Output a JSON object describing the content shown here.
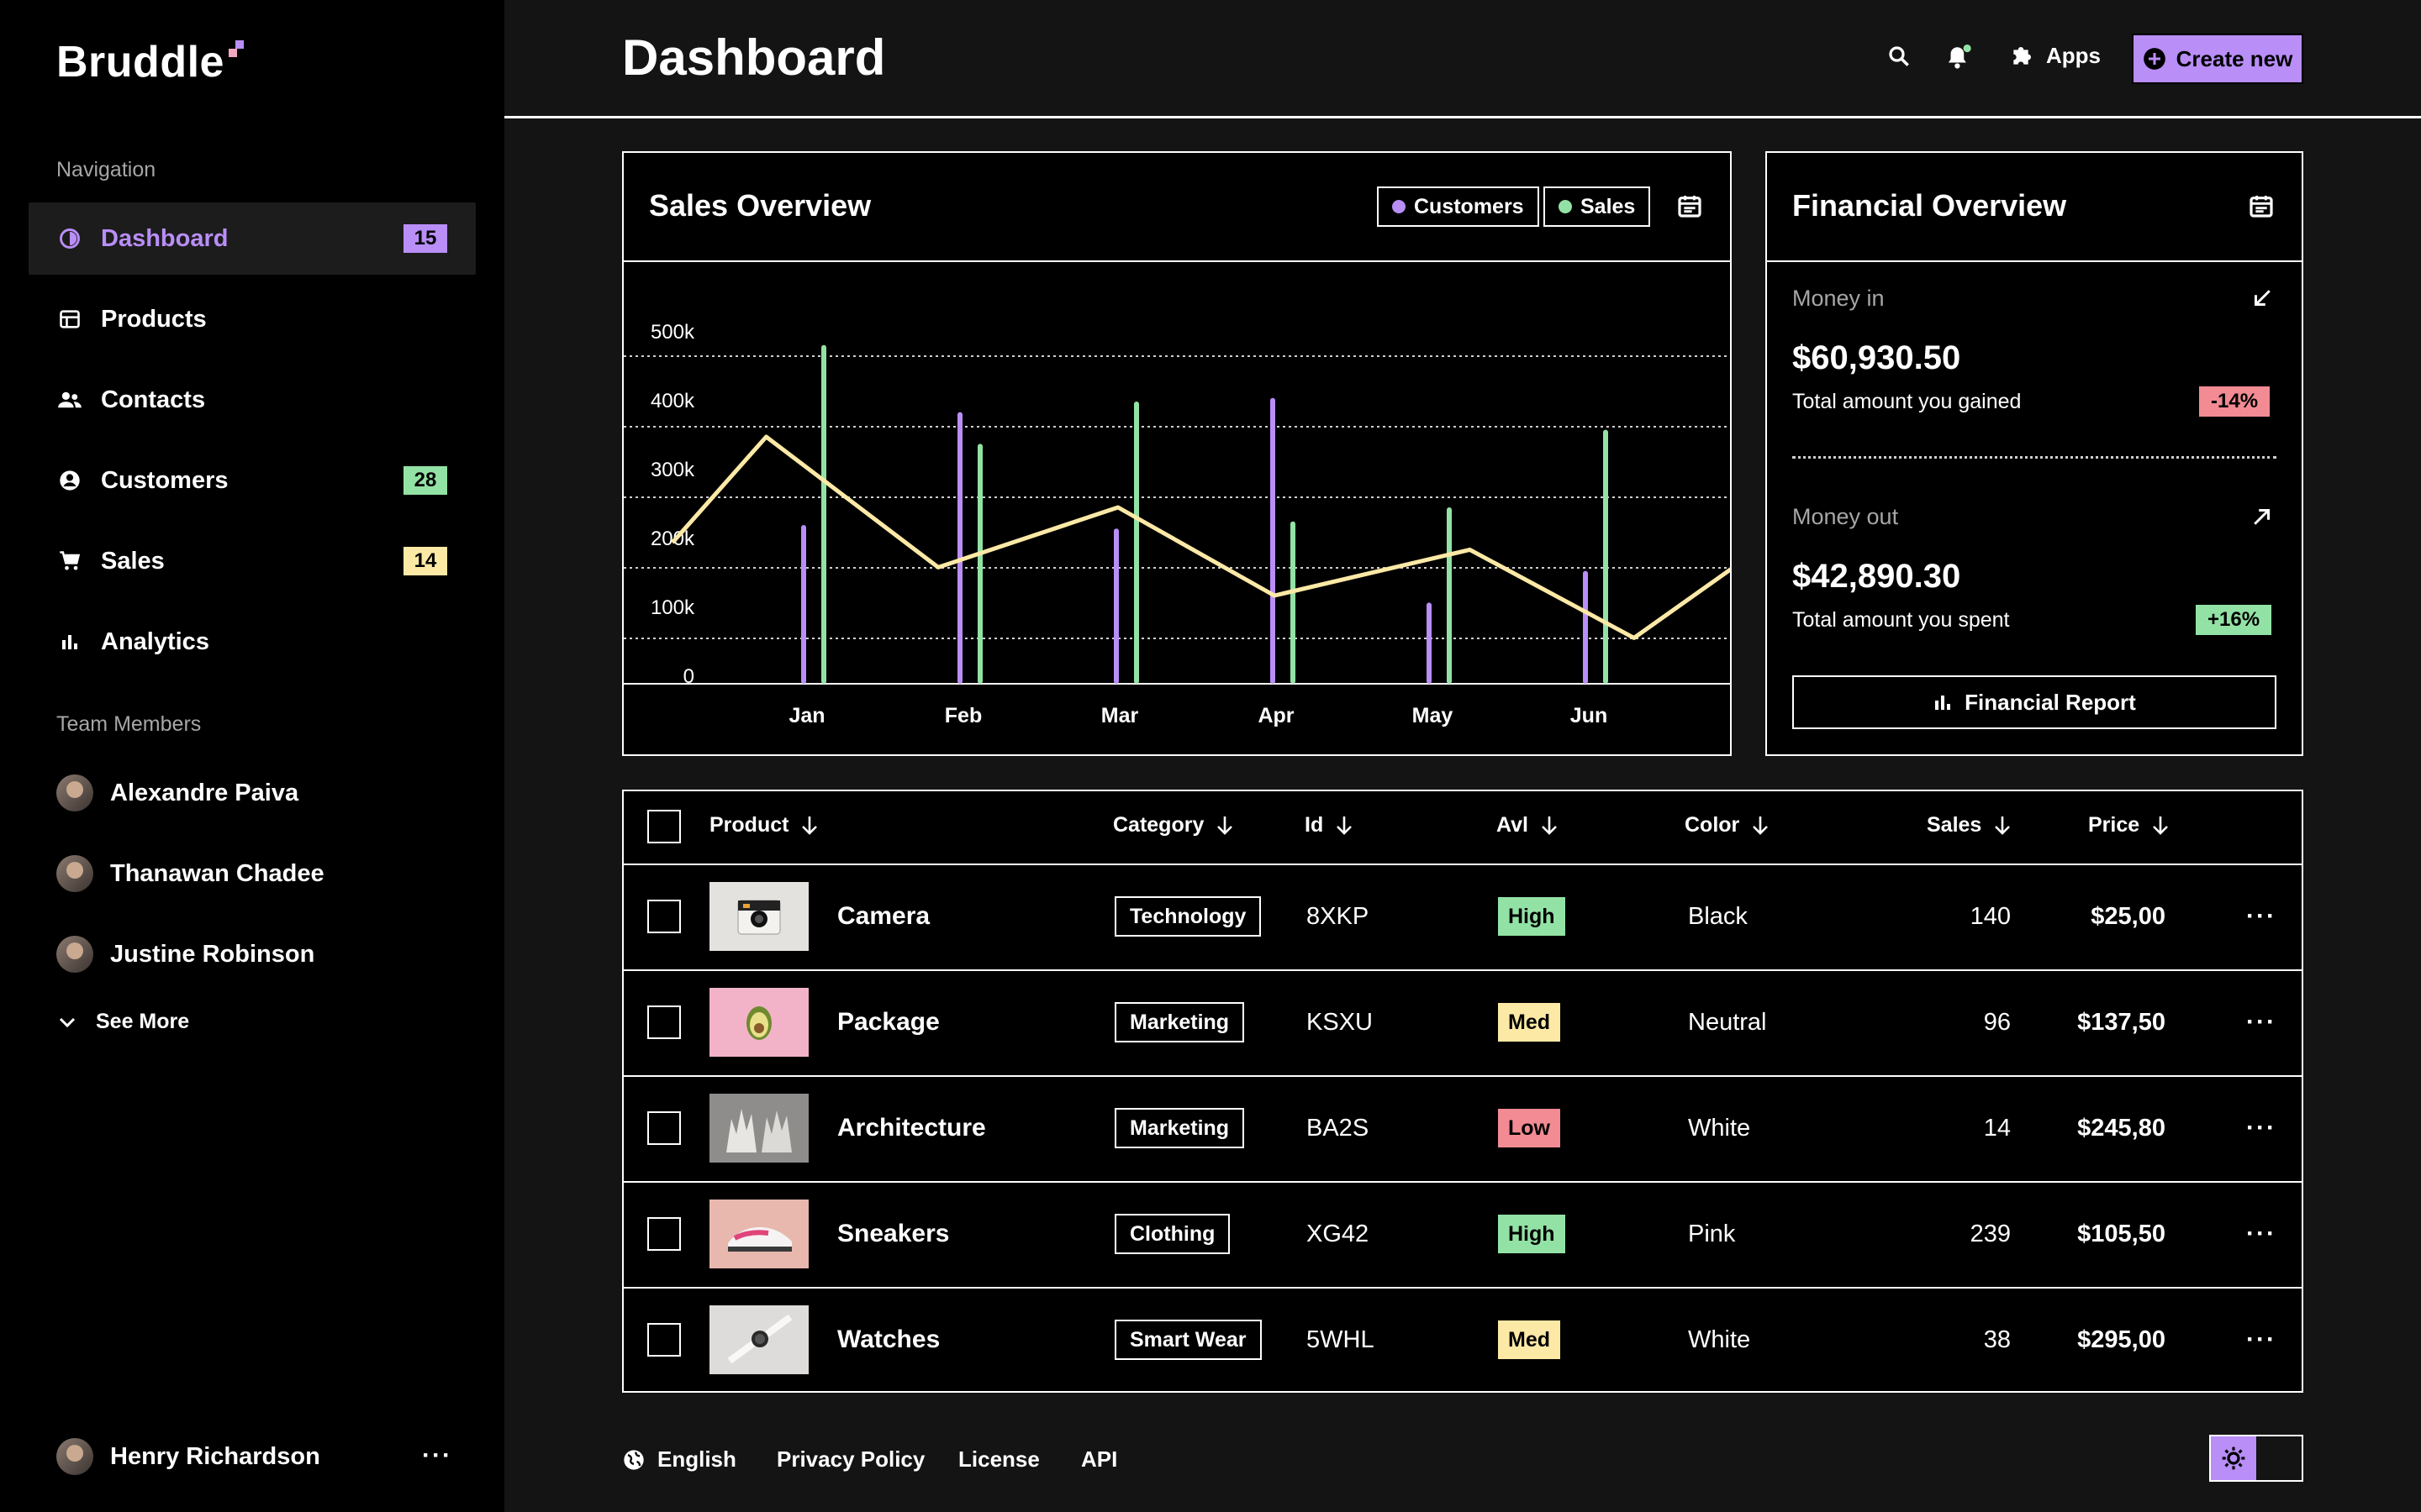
{
  "brand": "Bruddle",
  "colors": {
    "accent": "#b98ef7",
    "green": "#93e2a5",
    "yellow": "#fde9a6",
    "red": "#f28b93",
    "customers": "#b98ef7",
    "sales": "#93e2a5",
    "line": "#fde9a6"
  },
  "sidebar": {
    "nav_label": "Navigation",
    "items": [
      {
        "label": "Dashboard",
        "badge": "15",
        "icon": "dashboard-icon",
        "active": true
      },
      {
        "label": "Products",
        "badge": "",
        "icon": "store-icon"
      },
      {
        "label": "Contacts",
        "badge": "",
        "icon": "contacts-icon"
      },
      {
        "label": "Customers",
        "badge": "28",
        "icon": "customer-icon"
      },
      {
        "label": "Sales",
        "badge": "14",
        "icon": "cart-icon"
      },
      {
        "label": "Analytics",
        "badge": "",
        "icon": "bar-chart-icon"
      }
    ],
    "team_label": "Team Members",
    "members": [
      "Alexandre Paiva",
      "Thanawan Chadee",
      "Justine Robinson"
    ],
    "see_more": "See More",
    "current_user": "Henry Richardson",
    "more": "···"
  },
  "header": {
    "title": "Dashboard",
    "apps": "Apps",
    "create": "Create new"
  },
  "sales_overview": {
    "title": "Sales Overview",
    "legend": [
      "Customers",
      "Sales"
    ]
  },
  "chart_data": {
    "type": "bar",
    "categories": [
      "Jan",
      "Feb",
      "Mar",
      "Apr",
      "May",
      "Jun"
    ],
    "y_ticks": [
      "500k",
      "400k",
      "300k",
      "200k",
      "100k",
      "0"
    ],
    "ylim": [
      0,
      500000
    ],
    "grid": true,
    "series": [
      {
        "name": "Customers",
        "type": "bar",
        "values": [
          225000,
          385000,
          220000,
          405000,
          115000,
          160000
        ]
      },
      {
        "name": "Sales",
        "type": "bar",
        "values": [
          480000,
          340000,
          400000,
          230000,
          250000,
          360000
        ]
      },
      {
        "type": "line",
        "x": [
          -0.85,
          -0.25,
          0.85,
          2.0,
          3.0,
          4.25,
          5.3,
          6.0
        ],
        "values": [
          200000,
          350000,
          165000,
          250000,
          125000,
          190000,
          65000,
          175000
        ]
      }
    ]
  },
  "financial": {
    "title": "Financial Overview",
    "money_in_label": "Money in",
    "money_in": "$60,930.50",
    "money_in_sub": "Total amount you gained",
    "money_in_change": "-14%",
    "money_out_label": "Money out",
    "money_out": "$42,890.30",
    "money_out_sub": "Total amount you spent",
    "money_out_change": "+16%",
    "report": "Financial Report"
  },
  "table": {
    "headers": {
      "product": "Product",
      "category": "Category",
      "id": "Id",
      "avl": "Avl",
      "color": "Color",
      "sales": "Sales",
      "price": "Price"
    },
    "rows": [
      {
        "product": "Camera",
        "category": "Technology",
        "id": "8XKP",
        "avl": "High",
        "color": "Black",
        "sales": "140",
        "price": "$25,00"
      },
      {
        "product": "Package",
        "category": "Marketing",
        "id": "KSXU",
        "avl": "Med",
        "color": "Neutral",
        "sales": "96",
        "price": "$137,50"
      },
      {
        "product": "Architecture",
        "category": "Marketing",
        "id": "BA2S",
        "avl": "Low",
        "color": "White",
        "sales": "14",
        "price": "$245,80"
      },
      {
        "product": "Sneakers",
        "category": "Clothing",
        "id": "XG42",
        "avl": "High",
        "color": "Pink",
        "sales": "239",
        "price": "$105,50"
      },
      {
        "product": "Watches",
        "category": "Smart Wear",
        "id": "5WHL",
        "avl": "Med",
        "color": "White",
        "sales": "38",
        "price": "$295,00"
      }
    ],
    "more": "···"
  },
  "footer": {
    "language": "English",
    "privacy": "Privacy Policy",
    "license": "License",
    "api": "API"
  }
}
